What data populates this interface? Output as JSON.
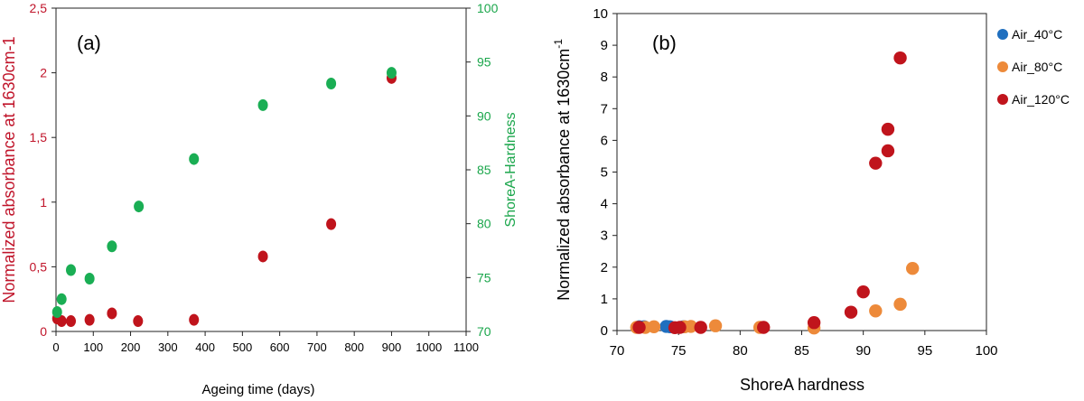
{
  "chart_data": [
    {
      "type": "scatter",
      "panel_label": "(a)",
      "xlabel": "Ageing time (days)",
      "ylabel": "Normalized absorbance at 1630cm-1",
      "y2label": "ShoreA-Hardness",
      "xlim": [
        0,
        1100
      ],
      "ylim": [
        0,
        2.5
      ],
      "y2lim": [
        70,
        100
      ],
      "x_ticks": [
        "0",
        "100",
        "200",
        "300",
        "400",
        "500",
        "600",
        "700",
        "800",
        "900",
        "1000",
        "1100"
      ],
      "y_ticks": [
        "0",
        "0,5",
        "1",
        "1,5",
        "2",
        "2,5"
      ],
      "y2_ticks": [
        "70",
        "75",
        "80",
        "85",
        "90",
        "95",
        "100"
      ],
      "grid": false,
      "legend": "none",
      "colors": {
        "left_axis": "#c0142a",
        "right_axis": "#1aa64b"
      },
      "series": [
        {
          "axis": "left",
          "color": "#c0141c",
          "x": [
            3,
            15,
            40,
            90,
            150,
            220,
            370,
            555,
            738,
            900
          ],
          "y": [
            0.1,
            0.08,
            0.08,
            0.09,
            0.14,
            0.08,
            0.09,
            0.58,
            0.83,
            1.96
          ]
        },
        {
          "axis": "right",
          "color": "#1aae54",
          "x": [
            3,
            15,
            40,
            90,
            150,
            222,
            370,
            555,
            738,
            900
          ],
          "y": [
            71.8,
            73,
            75.7,
            74.9,
            77.9,
            81.6,
            86,
            91,
            93,
            94
          ]
        }
      ]
    },
    {
      "type": "scatter",
      "panel_label": "(b)",
      "xlabel": "ShoreA hardness",
      "ylabel": "Normalized absorbance at 1630cm",
      "ylabel_sup": "-1",
      "xlim": [
        70,
        100
      ],
      "ylim": [
        0,
        10
      ],
      "x_ticks": [
        "70",
        "75",
        "80",
        "85",
        "90",
        "95",
        "100"
      ],
      "y_ticks": [
        "0",
        "1",
        "2",
        "3",
        "4",
        "5",
        "6",
        "7",
        "8",
        "9",
        "10"
      ],
      "grid": false,
      "legend": "right",
      "series": [
        {
          "name": "Air_40°C",
          "color": "#1f6fbf",
          "x": [
            71.8,
            72.2,
            74,
            74.3,
            75.4
          ],
          "y": [
            0.12,
            0.12,
            0.13,
            0.12,
            0.12
          ]
        },
        {
          "name": "Air_80°C",
          "color": "#ed8a3a",
          "x": [
            71.6,
            72.3,
            73,
            75.5,
            76,
            78,
            81.6,
            86,
            91,
            93,
            94
          ],
          "y": [
            0.1,
            0.1,
            0.12,
            0.12,
            0.13,
            0.15,
            0.1,
            0.08,
            0.62,
            0.83,
            1.96
          ]
        },
        {
          "name": "Air_120°C",
          "color": "#c0141c",
          "x": [
            71.8,
            74.7,
            75.1,
            76.8,
            81.9,
            86,
            89,
            90,
            91,
            92,
            92,
            93
          ],
          "y": [
            0.1,
            0.09,
            0.1,
            0.1,
            0.1,
            0.25,
            0.58,
            1.22,
            5.28,
            5.67,
            6.35,
            8.6
          ]
        }
      ]
    }
  ]
}
